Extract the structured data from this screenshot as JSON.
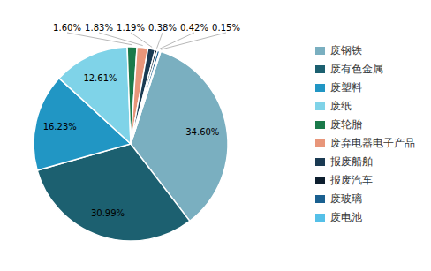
{
  "chart_data": {
    "type": "pie",
    "categories": [
      "废钢铁",
      "废有色金属",
      "废塑料",
      "废纸",
      "废轮胎",
      "废弃电器电子产品",
      "报废船舶",
      "报废汽车",
      "废玻璃",
      "废电池"
    ],
    "values": [
      34.6,
      30.99,
      16.23,
      12.61,
      1.6,
      1.83,
      1.19,
      0.38,
      0.42,
      0.15
    ],
    "value_labels": [
      "34.60%",
      "30.99%",
      "16.23%",
      "12.61%",
      "1.60%",
      "1.83%",
      "1.19%",
      "0.38%",
      "0.42%",
      "0.15%"
    ],
    "colors": [
      "#7aafc0",
      "#1c6070",
      "#2196c4",
      "#7fd3e8",
      "#1a7a4a",
      "#e8967a",
      "#1a3a52",
      "#0d1e2e",
      "#1a6090",
      "#55c0e8"
    ],
    "legend": "right",
    "data_labels": true
  }
}
